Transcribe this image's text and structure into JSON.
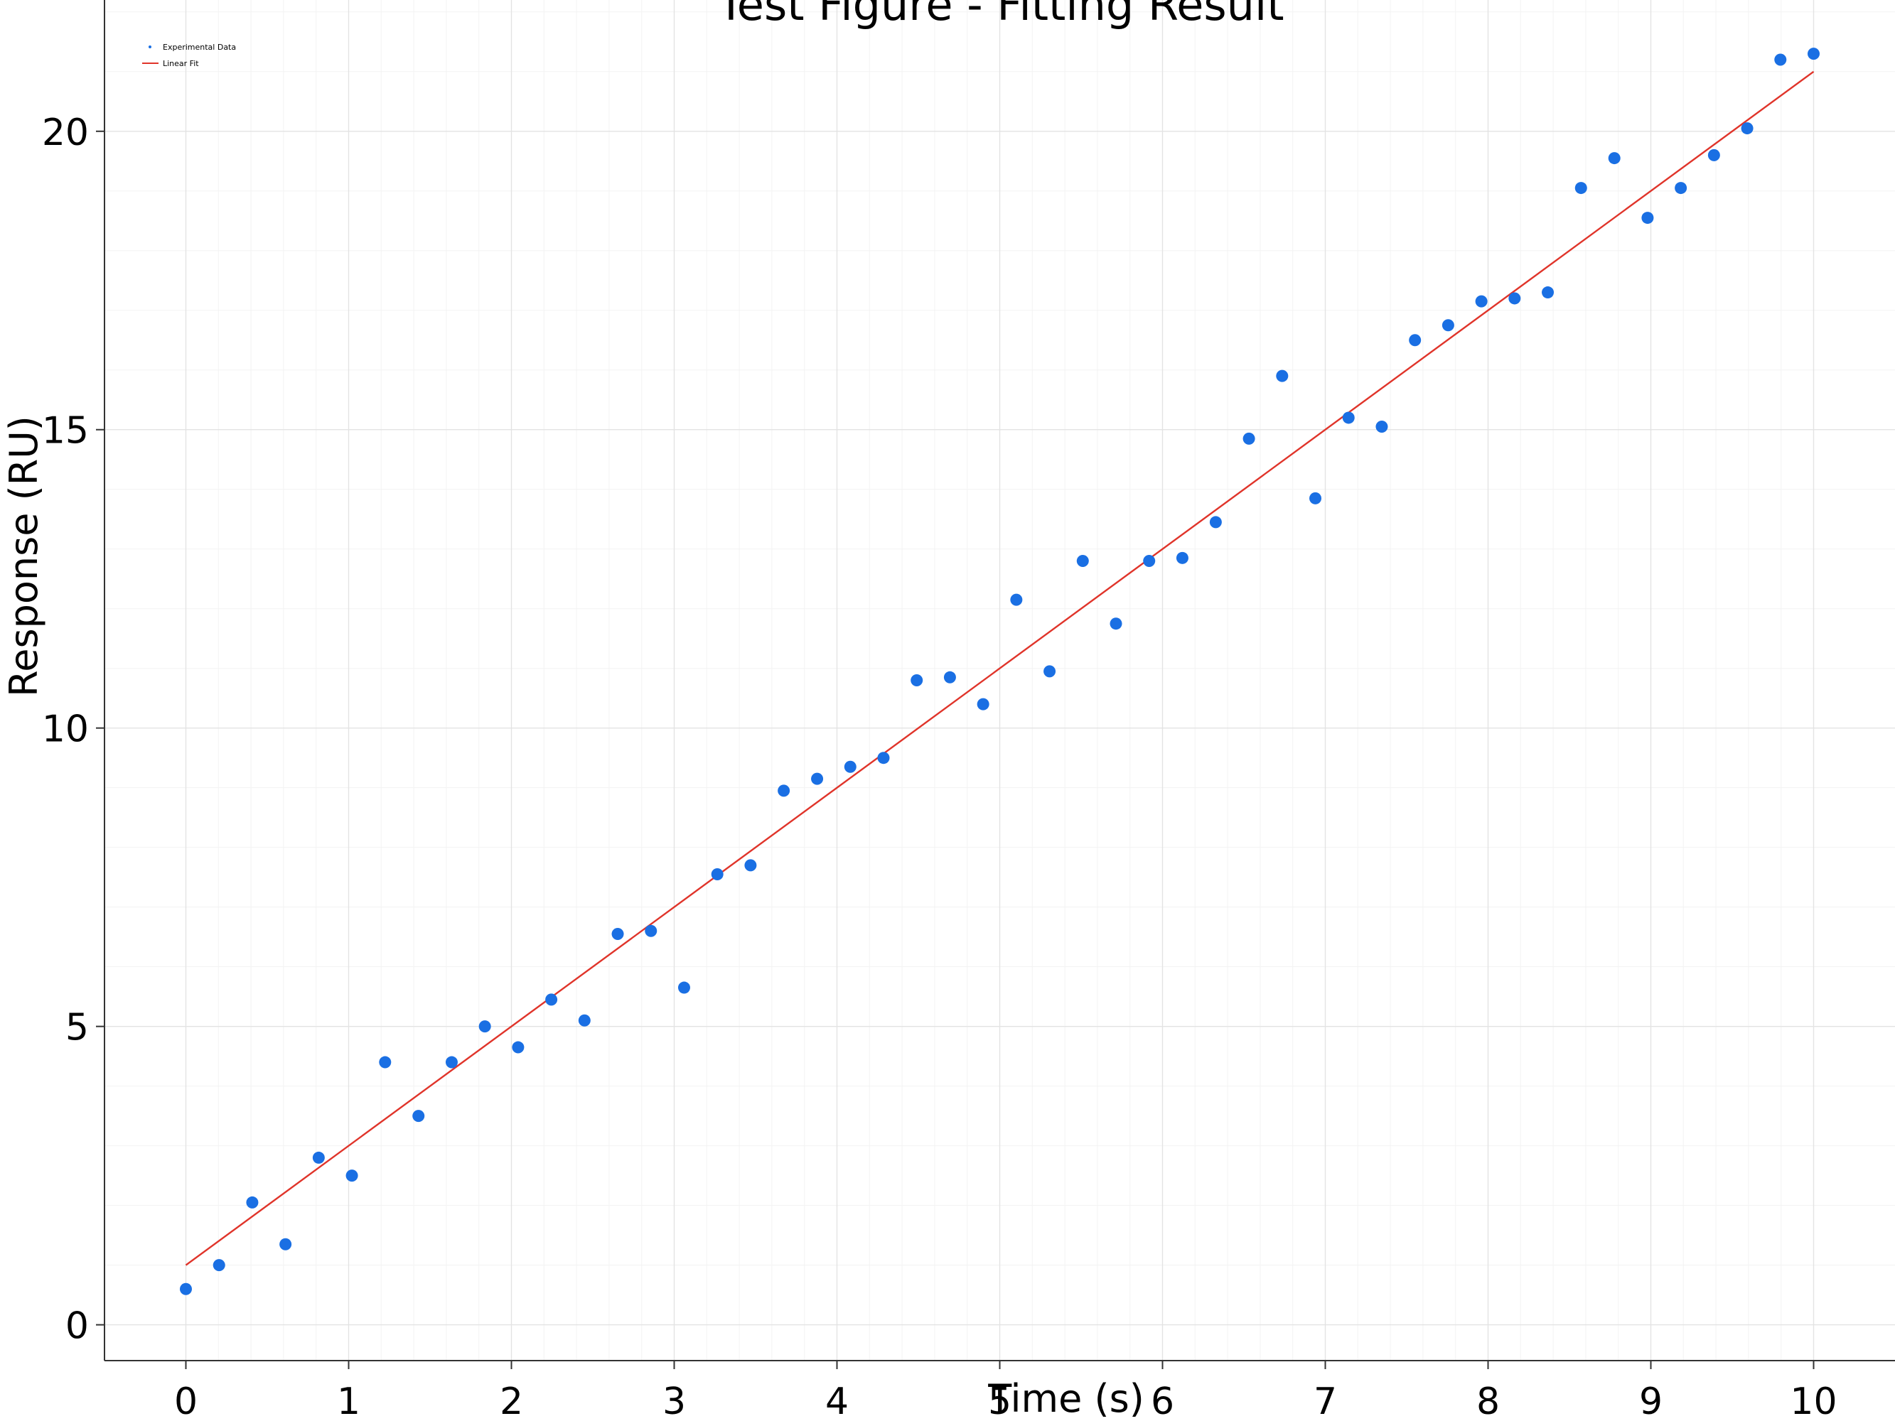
{
  "chart_data": {
    "type": "scatter",
    "title": "Test Figure - Fitting Result",
    "xlabel": "Time (s)",
    "ylabel": "Response (RU)",
    "xlim": [
      -0.5,
      10.5
    ],
    "ylim": [
      -0.6,
      22.2
    ],
    "xticks": [
      0,
      1,
      2,
      3,
      4,
      5,
      6,
      7,
      8,
      9,
      10
    ],
    "yticks": [
      0,
      5,
      10,
      15,
      20
    ],
    "grid": true,
    "minor_grid": true,
    "legend_position": "top-left",
    "series": [
      {
        "name": "Experimental Data",
        "kind": "scatter",
        "color": "#1a6fe3",
        "x": [
          0,
          0.204,
          0.408,
          0.612,
          0.816,
          1.02,
          1.224,
          1.429,
          1.633,
          1.837,
          2.041,
          2.245,
          2.449,
          2.653,
          2.857,
          3.061,
          3.265,
          3.469,
          3.673,
          3.878,
          4.082,
          4.286,
          4.49,
          4.694,
          4.898,
          5.102,
          5.306,
          5.51,
          5.714,
          5.918,
          6.122,
          6.327,
          6.531,
          6.735,
          6.939,
          7.143,
          7.347,
          7.551,
          7.755,
          7.959,
          8.163,
          8.367,
          8.571,
          8.776,
          8.98,
          9.184,
          9.388,
          9.592,
          9.796,
          10
        ],
        "y": [
          0.6,
          1.0,
          2.05,
          1.35,
          2.8,
          2.5,
          4.4,
          3.5,
          4.4,
          5.0,
          4.65,
          5.45,
          5.1,
          6.55,
          6.6,
          5.65,
          7.55,
          7.7,
          8.95,
          9.15,
          9.35,
          9.5,
          10.8,
          10.85,
          10.4,
          12.15,
          10.95,
          12.8,
          11.75,
          12.8,
          12.85,
          13.45,
          14.85,
          15.9,
          13.85,
          15.2,
          15.05,
          16.5,
          16.75,
          17.15,
          17.2,
          17.3,
          19.05,
          19.55,
          18.55,
          19.05,
          19.6,
          20.05,
          21.2,
          21.3
        ]
      },
      {
        "name": "Linear Fit",
        "kind": "line",
        "color": "#e0342a",
        "x": [
          0,
          10
        ],
        "y": [
          1.0,
          21.0
        ]
      }
    ]
  }
}
